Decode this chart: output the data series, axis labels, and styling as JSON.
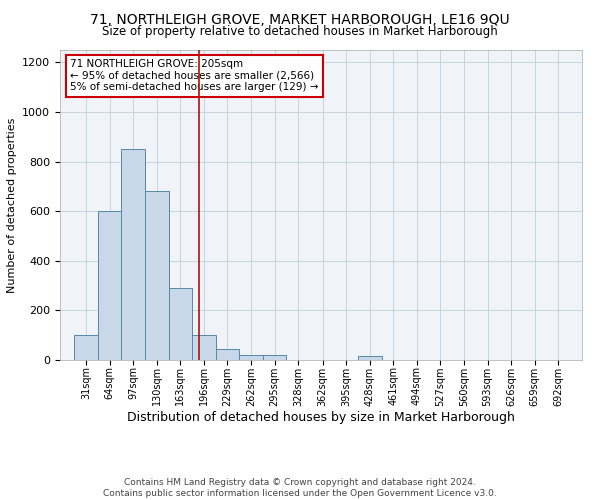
{
  "title1": "71, NORTHLEIGH GROVE, MARKET HARBOROUGH, LE16 9QU",
  "title2": "Size of property relative to detached houses in Market Harborough",
  "xlabel": "Distribution of detached houses by size in Market Harborough",
  "ylabel": "Number of detached properties",
  "footnote": "Contains HM Land Registry data © Crown copyright and database right 2024.\nContains public sector information licensed under the Open Government Licence v3.0.",
  "bin_labels": [
    "31sqm",
    "64sqm",
    "97sqm",
    "130sqm",
    "163sqm",
    "196sqm",
    "229sqm",
    "262sqm",
    "295sqm",
    "328sqm",
    "362sqm",
    "395sqm",
    "428sqm",
    "461sqm",
    "494sqm",
    "527sqm",
    "560sqm",
    "593sqm",
    "626sqm",
    "659sqm",
    "692sqm"
  ],
  "bin_edges": [
    31,
    64,
    97,
    130,
    163,
    196,
    229,
    262,
    295,
    328,
    362,
    395,
    428,
    461,
    494,
    527,
    560,
    593,
    626,
    659,
    692
  ],
  "bar_heights": [
    100,
    600,
    850,
    680,
    290,
    100,
    45,
    20,
    20,
    0,
    0,
    0,
    15,
    0,
    0,
    0,
    0,
    0,
    0,
    0,
    0
  ],
  "bar_color": "#c8d8e8",
  "bar_edge_color": "#5588aa",
  "red_line_x": 205,
  "ylim": [
    0,
    1250
  ],
  "yticks": [
    0,
    200,
    400,
    600,
    800,
    1000,
    1200
  ],
  "annotation_title": "71 NORTHLEIGH GROVE: 205sqm",
  "annotation_line1": "← 95% of detached houses are smaller (2,566)",
  "annotation_line2": "5% of semi-detached houses are larger (129) →",
  "annotation_box_color": "#ffffff",
  "annotation_border_color": "#cc0000",
  "title1_fontsize": 10,
  "title2_fontsize": 8.5,
  "xlabel_fontsize": 9,
  "ylabel_fontsize": 8,
  "footnote_fontsize": 6.5,
  "tick_fontsize": 7,
  "annotation_fontsize": 7.5
}
